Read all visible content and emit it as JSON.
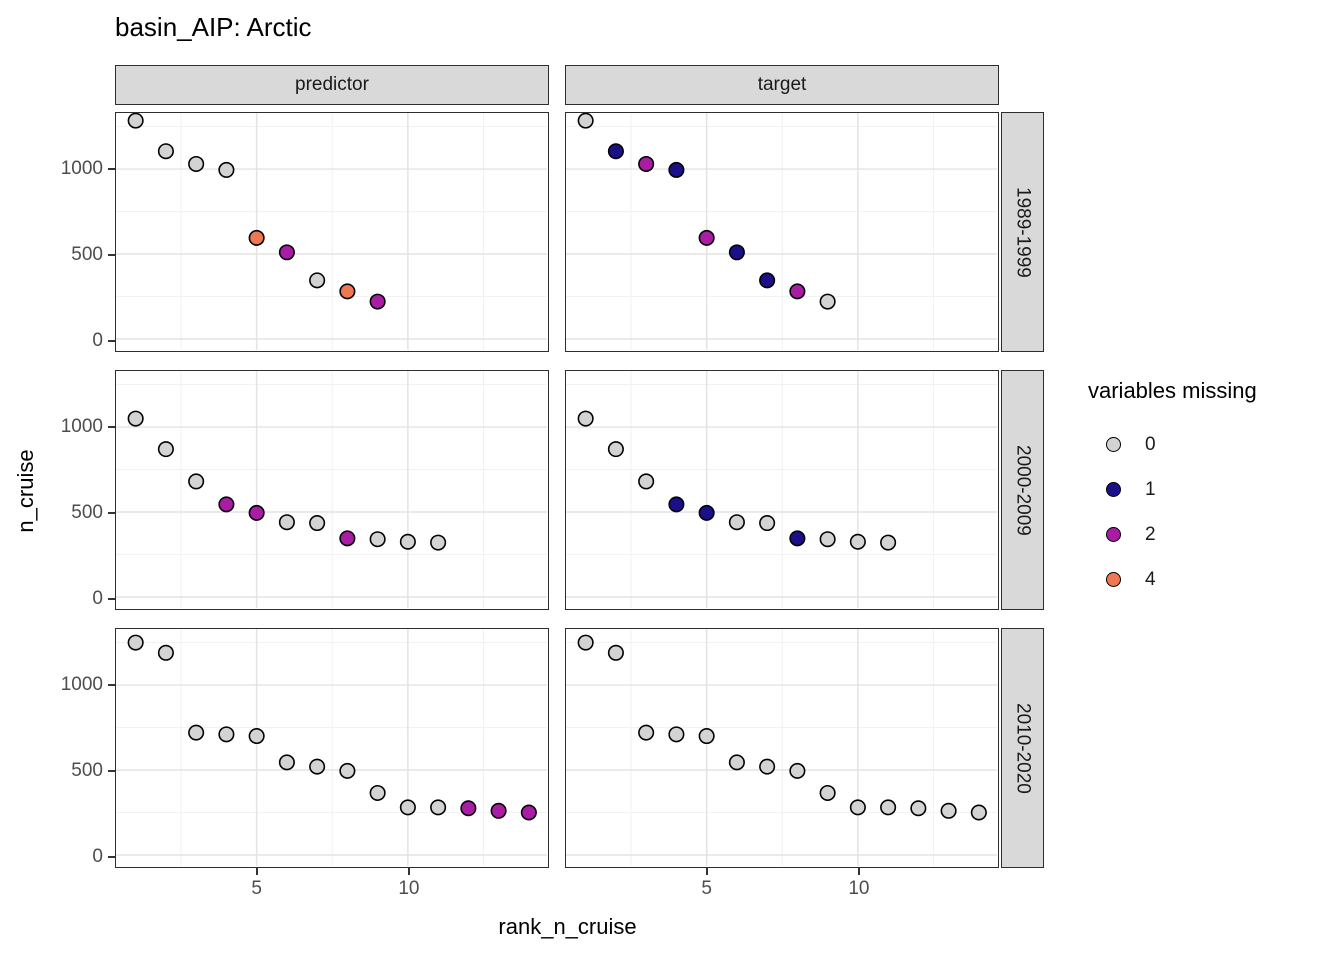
{
  "title": "basin_AIP: Arctic",
  "x_axis": {
    "label": "rank_n_cruise",
    "tick_labels": [
      "5",
      "10"
    ]
  },
  "y_axis": {
    "label": "n_cruise",
    "tick_labels": [
      "0",
      "500",
      "1000"
    ]
  },
  "legend": {
    "title": "variables missing",
    "items": [
      {
        "label": "0",
        "color_key": "0"
      },
      {
        "label": "1",
        "color_key": "1"
      },
      {
        "label": "2",
        "color_key": "2"
      },
      {
        "label": "4",
        "color_key": "4"
      }
    ]
  },
  "colors": {
    "fills": {
      "0": "#d3d3d3",
      "1": "#1b1088",
      "2": "#a81da3",
      "4": "#ed7953"
    },
    "point_stroke": "#000000",
    "strip_bg": "#d9d9d9",
    "panel_border": "#2e2e2e",
    "grid_major": "#e3e3e3",
    "grid_minor": "#f2f2f2",
    "tick_label": "#4d4d4d"
  },
  "chart_data": {
    "type": "scatter",
    "title": "basin_AIP: Arctic",
    "xlabel": "rank_n_cruise",
    "ylabel": "n_cruise",
    "legend_title": "variables missing",
    "legend_position": "right",
    "grid": true,
    "col_facets": [
      "predictor",
      "target"
    ],
    "row_facets": [
      "1989-1999",
      "2000-2009",
      "2010-2020"
    ],
    "xlim": [
      0.35,
      14.6
    ],
    "ylim": [
      -65,
      1330
    ],
    "x_ticks": [
      5,
      10
    ],
    "y_ticks": [
      0,
      500,
      1000
    ],
    "x_minor_ticks": [
      2.5,
      7.5,
      12.5
    ],
    "y_minor_ticks": [
      250,
      750,
      1250
    ],
    "color_groups": [
      "0",
      "1",
      "2",
      "4"
    ],
    "rows": [
      {
        "facet": "1989-1999",
        "rank_n_cruise": [
          1,
          2,
          3,
          4,
          5,
          6,
          7,
          8,
          9
        ],
        "n_cruise": [
          1285,
          1105,
          1030,
          995,
          595,
          510,
          345,
          280,
          220
        ],
        "predictor_missing": [
          0,
          0,
          0,
          0,
          4,
          2,
          0,
          4,
          2
        ],
        "target_missing": [
          0,
          1,
          2,
          1,
          2,
          1,
          1,
          2,
          0
        ]
      },
      {
        "facet": "2000-2009",
        "rank_n_cruise": [
          1,
          2,
          3,
          4,
          5,
          6,
          7,
          8,
          9,
          10,
          11
        ],
        "n_cruise": [
          1050,
          870,
          680,
          545,
          495,
          440,
          435,
          345,
          340,
          325,
          320
        ],
        "predictor_missing": [
          0,
          0,
          0,
          2,
          2,
          0,
          0,
          2,
          0,
          0,
          0
        ],
        "target_missing": [
          0,
          0,
          0,
          1,
          1,
          0,
          0,
          1,
          0,
          0,
          0
        ]
      },
      {
        "facet": "2010-2020",
        "rank_n_cruise": [
          1,
          2,
          3,
          4,
          5,
          6,
          7,
          8,
          9,
          10,
          11,
          12,
          13,
          14
        ],
        "n_cruise": [
          1250,
          1190,
          720,
          710,
          700,
          545,
          520,
          495,
          365,
          280,
          280,
          275,
          260,
          250
        ],
        "predictor_missing": [
          0,
          0,
          0,
          0,
          0,
          0,
          0,
          0,
          0,
          0,
          0,
          2,
          2,
          2
        ],
        "target_missing": [
          0,
          0,
          0,
          0,
          0,
          0,
          0,
          0,
          0,
          0,
          0,
          0,
          0,
          0
        ]
      }
    ]
  }
}
